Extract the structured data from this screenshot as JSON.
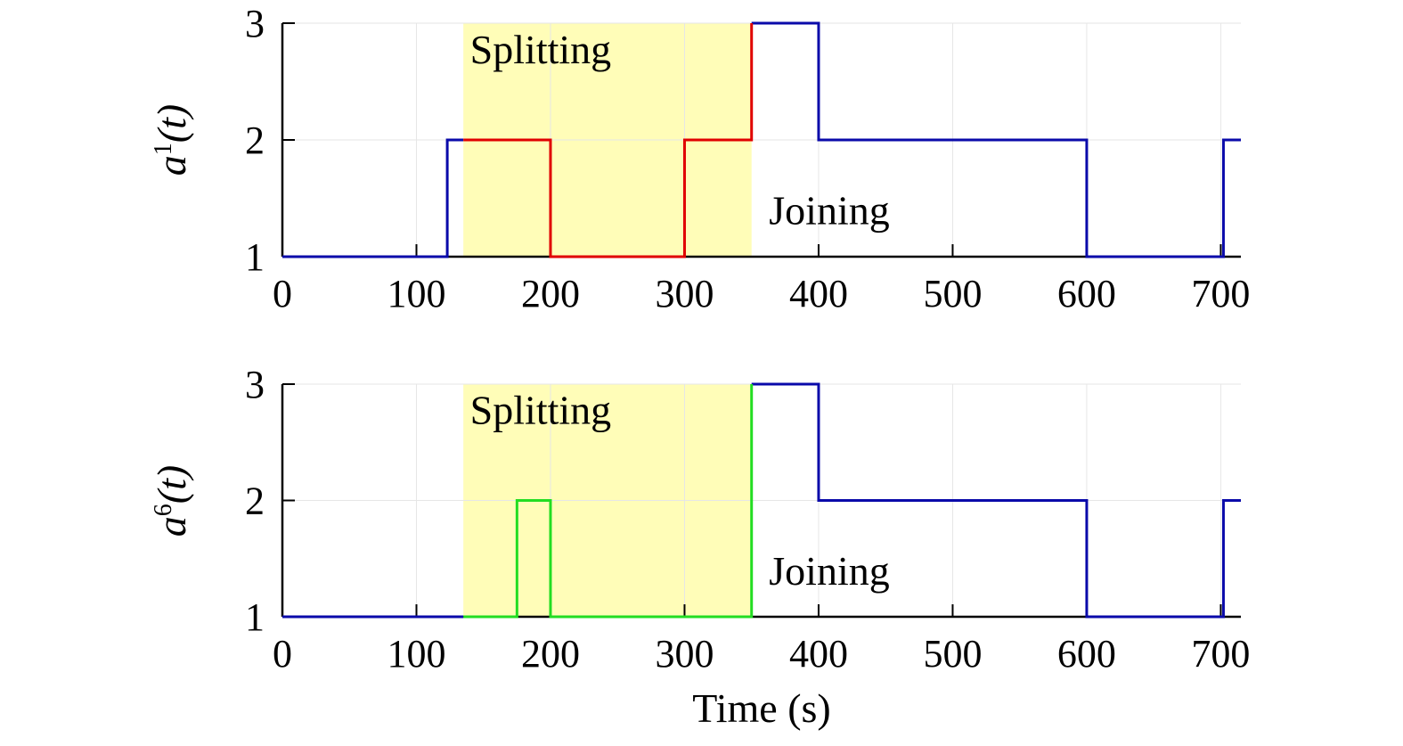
{
  "chart_data": [
    {
      "type": "line",
      "step": true,
      "ylabel": {
        "base": "a",
        "sup": "1",
        "args": "(t)"
      },
      "xlim": [
        0,
        715
      ],
      "ylim": [
        1,
        3
      ],
      "xticks": [
        0,
        100,
        200,
        300,
        400,
        500,
        600,
        700
      ],
      "yticks": [
        1,
        2,
        3
      ],
      "grid": true,
      "shaded_region": {
        "x": [
          135,
          350
        ],
        "color": "#FFFDB8"
      },
      "annotations": [
        {
          "text": "Splitting",
          "x": 140,
          "y": 2.78
        },
        {
          "text": "Joining",
          "x": 363,
          "y": 1.4
        }
      ],
      "series": [
        {
          "color": "#0A0AAA",
          "segments": [
            [
              [
                0,
                1
              ],
              [
                123,
                1
              ],
              [
                123,
                2
              ],
              [
                135,
                2
              ]
            ],
            [
              [
                350,
                3
              ],
              [
                400,
                3
              ],
              [
                400,
                2
              ],
              [
                600,
                2
              ],
              [
                600,
                1
              ],
              [
                702,
                1
              ],
              [
                702,
                2
              ],
              [
                715,
                2
              ]
            ]
          ]
        },
        {
          "color": "#E00000",
          "segments": [
            [
              [
                135,
                2
              ],
              [
                200,
                2
              ],
              [
                200,
                1
              ],
              [
                300,
                1
              ],
              [
                300,
                2
              ],
              [
                350,
                2
              ],
              [
                350,
                3
              ]
            ]
          ]
        }
      ]
    },
    {
      "type": "line",
      "step": true,
      "ylabel": {
        "base": "a",
        "sup": "6",
        "args": "(t)"
      },
      "xlabel": "Time (s)",
      "xlim": [
        0,
        715
      ],
      "ylim": [
        1,
        3
      ],
      "xticks": [
        0,
        100,
        200,
        300,
        400,
        500,
        600,
        700
      ],
      "yticks": [
        1,
        2,
        3
      ],
      "grid": true,
      "shaded_region": {
        "x": [
          135,
          350
        ],
        "color": "#FFFDB8"
      },
      "annotations": [
        {
          "text": "Splitting",
          "x": 140,
          "y": 2.78
        },
        {
          "text": "Joining",
          "x": 363,
          "y": 1.4
        }
      ],
      "series": [
        {
          "color": "#0A0AAA",
          "segments": [
            [
              [
                0,
                1
              ],
              [
                135,
                1
              ]
            ],
            [
              [
                350,
                3
              ],
              [
                400,
                3
              ],
              [
                400,
                2
              ],
              [
                600,
                2
              ],
              [
                600,
                1
              ],
              [
                702,
                1
              ],
              [
                702,
                2
              ],
              [
                715,
                2
              ]
            ]
          ]
        },
        {
          "color": "#22DD22",
          "segments": [
            [
              [
                135,
                1
              ],
              [
                175,
                1
              ],
              [
                175,
                2
              ],
              [
                200,
                2
              ],
              [
                200,
                1
              ],
              [
                350,
                1
              ],
              [
                350,
                3
              ]
            ]
          ]
        }
      ]
    }
  ]
}
